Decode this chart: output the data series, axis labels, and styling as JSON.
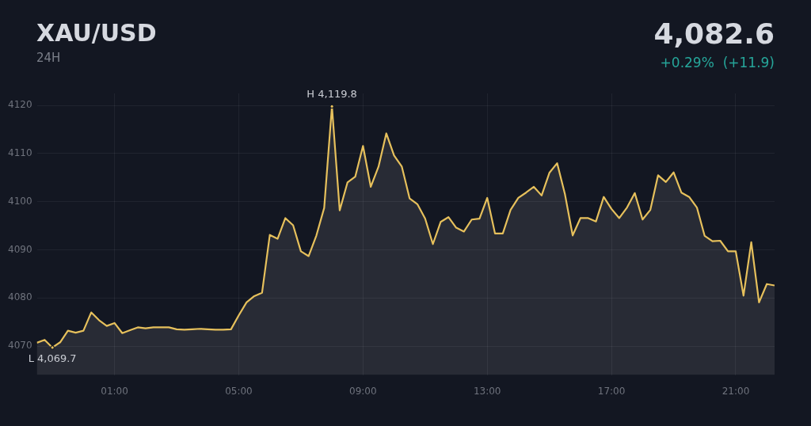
{
  "chart_data": {
    "type": "area",
    "title": "XAU/USD",
    "subtitle": "24H",
    "annotations": [
      "4,082.6",
      "+0.29%  (+11.9)",
      {
        "text": "H 4,119.8",
        "x": 8,
        "y": 4119.8
      },
      {
        "text": "L 4,069.7",
        "x": -1,
        "y": 4069.7
      }
    ],
    "x": [
      -1.5,
      -1.25,
      -1,
      -0.75,
      -0.5,
      -0.25,
      0,
      0.25,
      0.5,
      0.75,
      1,
      1.25,
      1.5,
      1.75,
      2,
      2.25,
      2.5,
      2.75,
      3,
      3.25,
      3.5,
      3.75,
      4,
      4.25,
      4.5,
      4.75,
      5,
      5.25,
      5.5,
      5.75,
      6,
      6.25,
      6.5,
      6.75,
      7,
      7.25,
      7.5,
      7.75,
      8,
      8.25,
      8.5,
      8.75,
      9,
      9.25,
      9.5,
      9.75,
      10,
      10.25,
      10.5,
      10.75,
      11,
      11.25,
      11.5,
      11.75,
      12,
      12.25,
      12.5,
      12.75,
      13,
      13.25,
      13.5,
      13.75,
      14,
      14.25,
      14.5,
      14.75,
      15,
      15.25,
      15.5,
      15.75,
      16,
      16.25,
      16.5,
      16.75,
      17,
      17.25,
      17.5,
      17.75,
      18,
      18.25,
      18.5,
      18.75,
      19,
      19.25,
      19.5,
      19.75,
      20,
      20.25,
      20.5,
      20.75,
      21,
      21.25,
      21.5,
      21.75,
      22,
      22.25
    ],
    "series": [
      {
        "color": "#e6c05c",
        "values": [
          4070.7,
          4071.3,
          4069.7,
          4070.8,
          4073.2,
          4072.8,
          4073.2,
          4077.0,
          4075.4,
          4074.2,
          4074.8,
          4072.7,
          4073.3,
          4073.9,
          4073.7,
          4073.9,
          4073.9,
          4073.9,
          4073.5,
          4073.4,
          4073.5,
          4073.6,
          4073.5,
          4073.4,
          4073.4,
          4073.5,
          4076.4,
          4079.1,
          4080.4,
          4081.1,
          4093.1,
          4092.3,
          4096.6,
          4095.1,
          4089.7,
          4088.7,
          4093.0,
          4098.7,
          4119.8,
          4098.2,
          4104.0,
          4105.2,
          4111.6,
          4103.1,
          4107.3,
          4114.2,
          4109.6,
          4107.3,
          4100.7,
          4099.5,
          4096.5,
          4091.2,
          4095.8,
          4096.8,
          4094.6,
          4093.8,
          4096.3,
          4096.5,
          4100.8,
          4093.4,
          4093.4,
          4098.3,
          4100.8,
          4101.9,
          4103.1,
          4101.3,
          4106.0,
          4108.0,
          4101.6,
          4093.0,
          4096.6,
          4096.6,
          4095.9,
          4101.0,
          4098.5,
          4096.6,
          4098.8,
          4101.8,
          4096.3,
          4098.3,
          4105.5,
          4104.1,
          4106.1,
          4101.9,
          4101.0,
          4098.8,
          4092.9,
          4091.8,
          4091.9,
          4089.7,
          4089.7,
          4080.5,
          4091.6,
          4079.1,
          4082.9,
          4082.6
        ]
      }
    ],
    "xlim": [
      -1.5,
      22.25
    ],
    "xticks": [
      {
        "value": 1,
        "label": "01:00"
      },
      {
        "value": 5,
        "label": "05:00"
      },
      {
        "value": 9,
        "label": "09:00"
      },
      {
        "value": 13,
        "label": "13:00"
      },
      {
        "value": 17,
        "label": "17:00"
      },
      {
        "value": 21,
        "label": "21:00"
      }
    ],
    "ylim": [
      4064,
      4122.5
    ],
    "yticks": [
      4070,
      4080,
      4090,
      4100,
      4110,
      4120
    ],
    "grid": true,
    "legend": false,
    "marker": "none",
    "line_style": "solid"
  }
}
